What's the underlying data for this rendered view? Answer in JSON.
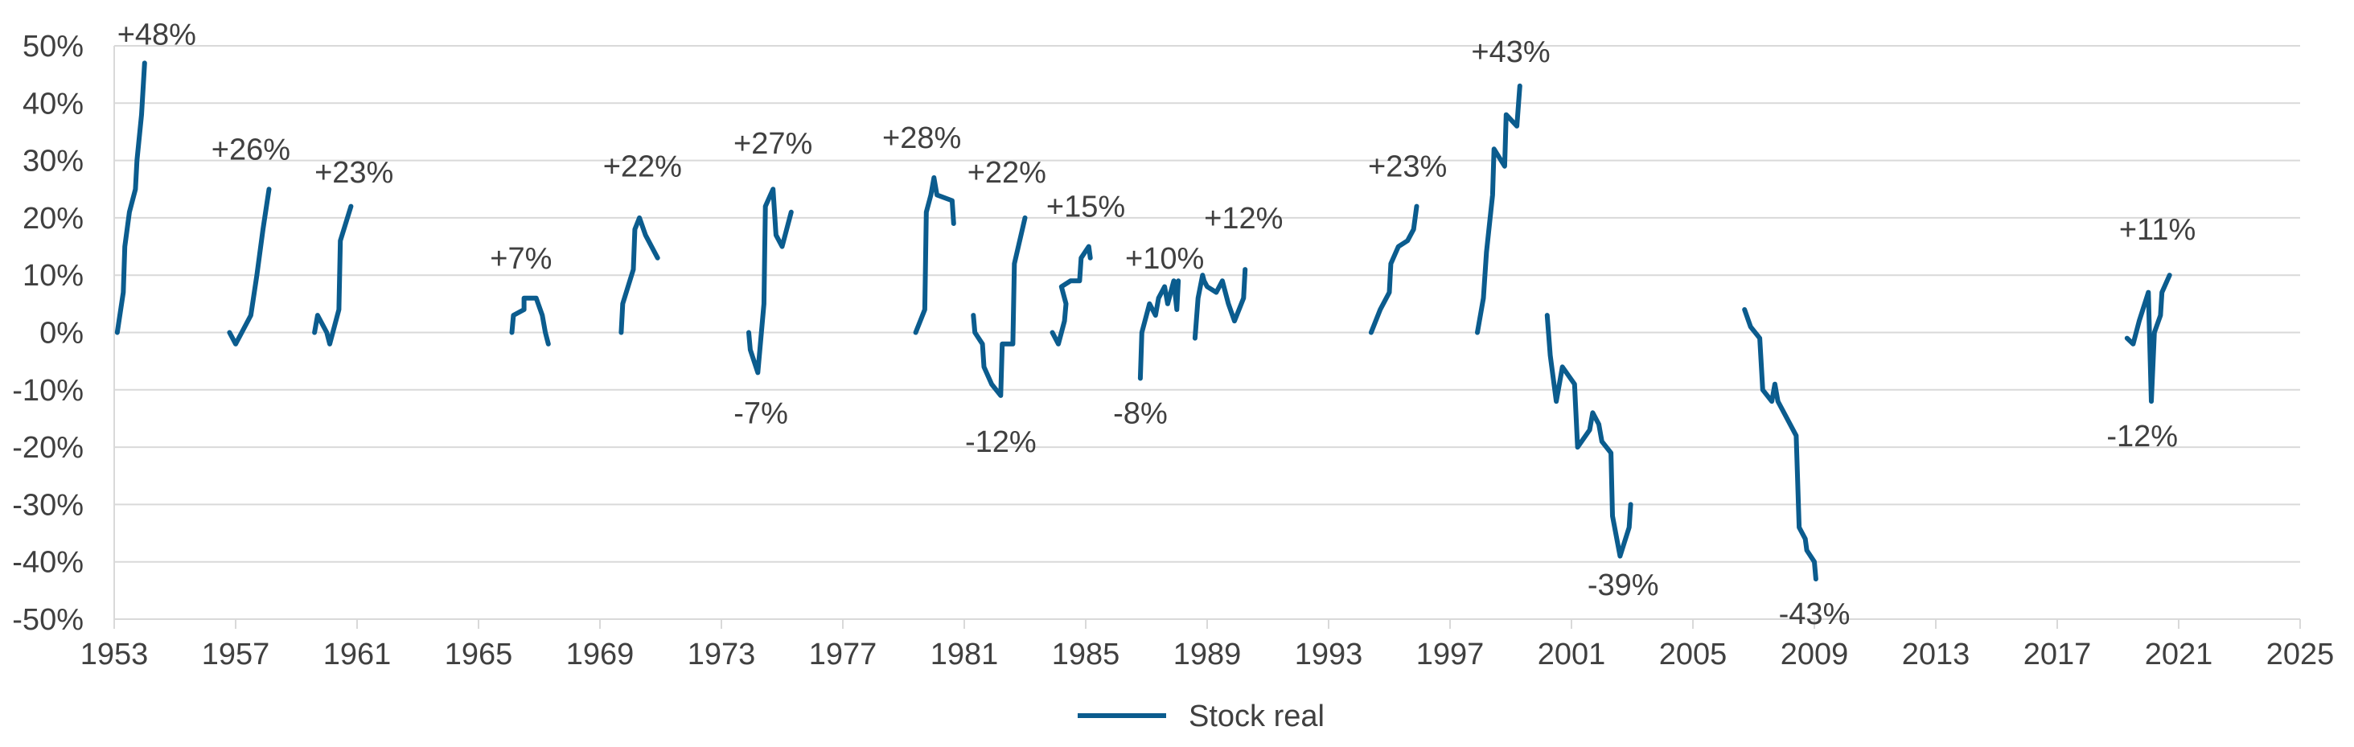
{
  "chart_data": {
    "type": "line",
    "title": "",
    "xlabel": "",
    "ylabel": "",
    "xlim": [
      1953,
      2025
    ],
    "ylim": [
      -50,
      50
    ],
    "x_ticks": [
      1953,
      1957,
      1961,
      1965,
      1969,
      1973,
      1977,
      1981,
      1985,
      1989,
      1993,
      1997,
      2001,
      2005,
      2009,
      2013,
      2017,
      2021,
      2025
    ],
    "y_ticks": [
      -50,
      -40,
      -30,
      -20,
      -10,
      0,
      10,
      20,
      30,
      40,
      50
    ],
    "y_tick_format": "percent",
    "grid": "horizontal",
    "legend": "bottom-center",
    "series": [
      {
        "name": "Stock real",
        "color": "#0B5C8E",
        "segments": [
          [
            [
              1953.1,
              0
            ],
            [
              1953.3,
              7
            ],
            [
              1953.35,
              15
            ],
            [
              1953.5,
              21
            ],
            [
              1953.7,
              25
            ],
            [
              1953.75,
              30
            ],
            [
              1953.9,
              38
            ],
            [
              1954.0,
              47
            ]
          ],
          [
            [
              1956.8,
              0
            ],
            [
              1957.0,
              -2
            ],
            [
              1957.2,
              0
            ],
            [
              1957.5,
              3
            ],
            [
              1957.7,
              10
            ],
            [
              1957.9,
              18
            ],
            [
              1958.1,
              25
            ]
          ],
          [
            [
              1959.6,
              0
            ],
            [
              1959.7,
              3
            ],
            [
              1960.0,
              0
            ],
            [
              1960.1,
              -2
            ],
            [
              1960.4,
              4
            ],
            [
              1960.45,
              16
            ],
            [
              1960.8,
              22
            ]
          ],
          [
            [
              1966.1,
              0
            ],
            [
              1966.15,
              3
            ],
            [
              1966.5,
              4
            ],
            [
              1966.5,
              6
            ],
            [
              1966.9,
              6
            ],
            [
              1967.1,
              3
            ],
            [
              1967.2,
              0
            ],
            [
              1967.3,
              -2
            ]
          ],
          [
            [
              1969.7,
              0
            ],
            [
              1969.75,
              5
            ],
            [
              1970.1,
              11
            ],
            [
              1970.15,
              18
            ],
            [
              1970.3,
              20
            ],
            [
              1970.5,
              17
            ],
            [
              1970.9,
              13
            ]
          ],
          [
            [
              1973.9,
              0
            ],
            [
              1973.95,
              -3
            ],
            [
              1974.2,
              -7
            ],
            [
              1974.4,
              5
            ],
            [
              1974.45,
              22
            ],
            [
              1974.7,
              25
            ],
            [
              1974.8,
              17
            ],
            [
              1975.0,
              15
            ],
            [
              1975.3,
              21
            ]
          ],
          [
            [
              1979.4,
              0
            ],
            [
              1979.7,
              4
            ],
            [
              1979.75,
              21
            ],
            [
              1979.9,
              24
            ],
            [
              1980.0,
              27
            ],
            [
              1980.1,
              24
            ],
            [
              1980.6,
              23
            ],
            [
              1980.65,
              19
            ]
          ],
          [
            [
              1981.3,
              3
            ],
            [
              1981.35,
              0
            ],
            [
              1981.6,
              -2
            ],
            [
              1981.65,
              -6
            ],
            [
              1981.9,
              -9
            ],
            [
              1982.2,
              -11
            ],
            [
              1982.25,
              -2
            ],
            [
              1982.6,
              -2
            ],
            [
              1982.65,
              12
            ],
            [
              1983.0,
              20
            ]
          ],
          [
            [
              1983.9,
              0
            ],
            [
              1984.1,
              -2
            ],
            [
              1984.3,
              2
            ],
            [
              1984.35,
              5
            ],
            [
              1984.2,
              8
            ],
            [
              1984.5,
              9
            ],
            [
              1984.8,
              9
            ],
            [
              1984.85,
              13
            ],
            [
              1985.1,
              15
            ],
            [
              1985.15,
              13
            ]
          ],
          [
            [
              1986.8,
              -8
            ],
            [
              1986.85,
              0
            ],
            [
              1987.1,
              5
            ],
            [
              1987.3,
              3
            ],
            [
              1987.4,
              6
            ],
            [
              1987.6,
              8
            ],
            [
              1987.7,
              5
            ],
            [
              1987.9,
              9
            ],
            [
              1988.0,
              4
            ],
            [
              1988.05,
              9
            ]
          ],
          [
            [
              1988.6,
              -1
            ],
            [
              1988.7,
              6
            ],
            [
              1988.85,
              10
            ],
            [
              1988.9,
              9
            ],
            [
              1989.0,
              8
            ],
            [
              1989.3,
              7
            ],
            [
              1989.5,
              9
            ],
            [
              1989.7,
              5
            ],
            [
              1989.9,
              2
            ],
            [
              1990.2,
              6
            ],
            [
              1990.25,
              11
            ]
          ],
          [
            [
              1994.4,
              0
            ],
            [
              1994.7,
              4
            ],
            [
              1995.0,
              7
            ],
            [
              1995.05,
              12
            ],
            [
              1995.3,
              15
            ],
            [
              1995.6,
              16
            ],
            [
              1995.8,
              18
            ],
            [
              1995.9,
              22
            ]
          ],
          [
            [
              1997.9,
              0
            ],
            [
              1998.1,
              6
            ],
            [
              1998.2,
              14
            ],
            [
              1998.4,
              24
            ],
            [
              1998.45,
              32
            ],
            [
              1998.8,
              29
            ],
            [
              1998.85,
              38
            ],
            [
              1999.2,
              36
            ],
            [
              1999.3,
              43
            ]
          ],
          [
            [
              2000.2,
              3
            ],
            [
              2000.3,
              -4
            ],
            [
              2000.5,
              -12
            ],
            [
              2000.7,
              -6
            ],
            [
              2001.1,
              -9
            ],
            [
              2001.2,
              -20
            ],
            [
              2001.6,
              -17
            ],
            [
              2001.7,
              -14
            ],
            [
              2001.9,
              -16
            ],
            [
              2002.0,
              -19
            ],
            [
              2002.3,
              -21
            ],
            [
              2002.35,
              -32
            ],
            [
              2002.6,
              -39
            ],
            [
              2002.9,
              -34
            ],
            [
              2002.95,
              -30
            ]
          ],
          [
            [
              2006.7,
              4
            ],
            [
              2006.9,
              1
            ],
            [
              2007.2,
              -1
            ],
            [
              2007.3,
              -10
            ],
            [
              2007.6,
              -12
            ],
            [
              2007.7,
              -9
            ],
            [
              2007.8,
              -12
            ],
            [
              2008.4,
              -18
            ],
            [
              2008.5,
              -34
            ],
            [
              2008.7,
              -36
            ],
            [
              2008.75,
              -38
            ],
            [
              2009.0,
              -40
            ],
            [
              2009.05,
              -43
            ]
          ],
          [
            [
              2019.3,
              -1
            ],
            [
              2019.5,
              -2
            ],
            [
              2019.7,
              2
            ],
            [
              2020.0,
              7
            ],
            [
              2020.1,
              -12
            ],
            [
              2020.2,
              0
            ],
            [
              2020.4,
              3
            ],
            [
              2020.45,
              7
            ],
            [
              2020.7,
              10
            ]
          ]
        ]
      }
    ],
    "annotations": [
      {
        "text": "+48%",
        "x": 1954.4,
        "y": 52
      },
      {
        "text": "+26%",
        "x": 1957.5,
        "y": 32
      },
      {
        "text": "+23%",
        "x": 1960.9,
        "y": 28
      },
      {
        "text": "+7%",
        "x": 1966.4,
        "y": 13
      },
      {
        "text": "+22%",
        "x": 1970.4,
        "y": 29
      },
      {
        "text": "+27%",
        "x": 1974.7,
        "y": 33
      },
      {
        "text": "-7%",
        "x": 1974.3,
        "y": -14
      },
      {
        "text": "+28%",
        "x": 1979.6,
        "y": 34
      },
      {
        "text": "+22%",
        "x": 1982.4,
        "y": 28
      },
      {
        "text": "-12%",
        "x": 1982.2,
        "y": -19
      },
      {
        "text": "+15%",
        "x": 1985.0,
        "y": 22
      },
      {
        "text": "+10%",
        "x": 1987.6,
        "y": 13
      },
      {
        "text": "-8%",
        "x": 1986.8,
        "y": -14
      },
      {
        "text": "+12%",
        "x": 1990.2,
        "y": 20
      },
      {
        "text": "+23%",
        "x": 1995.6,
        "y": 29
      },
      {
        "text": "+43%",
        "x": 1999.0,
        "y": 49
      },
      {
        "text": "-39%",
        "x": 2002.7,
        "y": -44
      },
      {
        "text": "-43%",
        "x": 2009.0,
        "y": -49
      },
      {
        "text": "+11%",
        "x": 2020.3,
        "y": 18
      },
      {
        "text": "-12%",
        "x": 2019.8,
        "y": -18
      }
    ],
    "legend_label": "Stock real"
  }
}
